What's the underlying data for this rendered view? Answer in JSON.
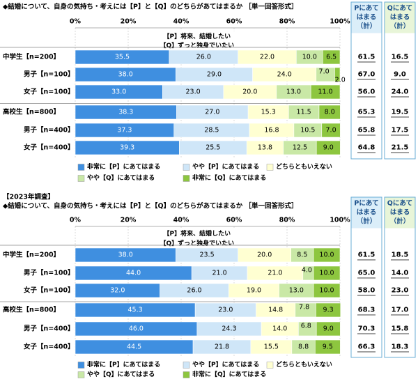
{
  "chart_data": [
    {
      "type": "bar",
      "stacked": true,
      "orientation": "horizontal",
      "title": "◆結婚について、自身の気持ち・考えには【P】と【Q】のどちらがあてはまるか ［単一回答形式］",
      "statement_p": "【P】将来、結婚したい",
      "statement_q": "【Q】ずっと独身でいたい",
      "x_ticks": [
        "0%",
        "20%",
        "40%",
        "60%",
        "80%",
        "100%"
      ],
      "xlim": [
        0,
        100
      ],
      "categories": [
        "中学生【n=200】",
        "男子【n=100】",
        "女子【n=100】",
        "高校生【n=800】",
        "男子【n=400】",
        "女子【n=400】"
      ],
      "series": [
        {
          "name": "非常に【P】にあてはまる",
          "values": [
            35.5,
            38.0,
            33.0,
            38.3,
            37.3,
            39.3
          ]
        },
        {
          "name": "やや【P】にあてはまる",
          "values": [
            26.0,
            29.0,
            23.0,
            27.0,
            28.5,
            25.5
          ]
        },
        {
          "name": "どちらともいえない",
          "values": [
            22.0,
            24.0,
            20.0,
            15.3,
            16.8,
            13.8
          ]
        },
        {
          "name": "やや【Q】にあてはまる",
          "values": [
            10.0,
            7.0,
            13.0,
            11.5,
            10.5,
            12.5
          ]
        },
        {
          "name": "非常に【Q】にあてはまる",
          "values": [
            6.5,
            2.0,
            11.0,
            8.0,
            7.0,
            9.0
          ]
        }
      ],
      "summary_p_header": "Pにあてはまる（計）",
      "summary_q_header": "Qにあてはまる（計）",
      "summary_p": [
        "61.5",
        "67.0",
        "56.0",
        "65.3",
        "65.8",
        "64.8"
      ],
      "summary_q": [
        "16.5",
        "9.0",
        "24.0",
        "19.5",
        "17.5",
        "21.5"
      ]
    },
    {
      "type": "bar",
      "stacked": true,
      "orientation": "horizontal",
      "section_label": "【2023年調査】",
      "title": "◆結婚について、自身の気持ち・考えには【P】と【Q】のどちらがあてはまるか ［単一回答形式］",
      "statement_p": "【P】将来、結婚したい",
      "statement_q": "【Q】ずっと独身でいたい",
      "x_ticks": [
        "0%",
        "20%",
        "40%",
        "60%",
        "80%",
        "100%"
      ],
      "xlim": [
        0,
        100
      ],
      "categories": [
        "中学生【n=200】",
        "男子【n=100】",
        "女子【n=100】",
        "高校生【n=800】",
        "男子【n=400】",
        "女子【n=400】"
      ],
      "series": [
        {
          "name": "非常に【P】にあてはまる",
          "values": [
            38.0,
            44.0,
            32.0,
            45.3,
            46.0,
            44.5
          ]
        },
        {
          "name": "やや【P】にあてはまる",
          "values": [
            23.5,
            21.0,
            26.0,
            23.0,
            24.3,
            21.8
          ]
        },
        {
          "name": "どちらともいえない",
          "values": [
            20.0,
            21.0,
            19.0,
            14.8,
            14.0,
            15.5
          ]
        },
        {
          "name": "やや【Q】にあてはまる",
          "values": [
            8.5,
            4.0,
            13.0,
            7.8,
            6.8,
            8.8
          ]
        },
        {
          "name": "非常に【Q】にあてはまる",
          "values": [
            10.0,
            10.0,
            10.0,
            9.3,
            9.0,
            9.5
          ]
        }
      ],
      "summary_p_header": "Pにあてはまる（計）",
      "summary_q_header": "Qにあてはまる（計）",
      "summary_p": [
        "61.5",
        "65.0",
        "58.0",
        "68.3",
        "70.3",
        "66.3"
      ],
      "summary_q": [
        "18.5",
        "14.0",
        "23.0",
        "17.0",
        "15.8",
        "18.3"
      ]
    }
  ],
  "colors": {
    "series": [
      "#3f8fe0",
      "#cfe6f8",
      "#ffffd2",
      "#c9e8a6",
      "#8dc63f"
    ],
    "series_text": [
      "#ffffff",
      "#000000",
      "#000000",
      "#000000",
      "#000000"
    ],
    "summary_border": "#6aaed6",
    "summary_p_header_bg": "#dbeef9",
    "summary_q_header_bg": "#e8f5d8"
  }
}
